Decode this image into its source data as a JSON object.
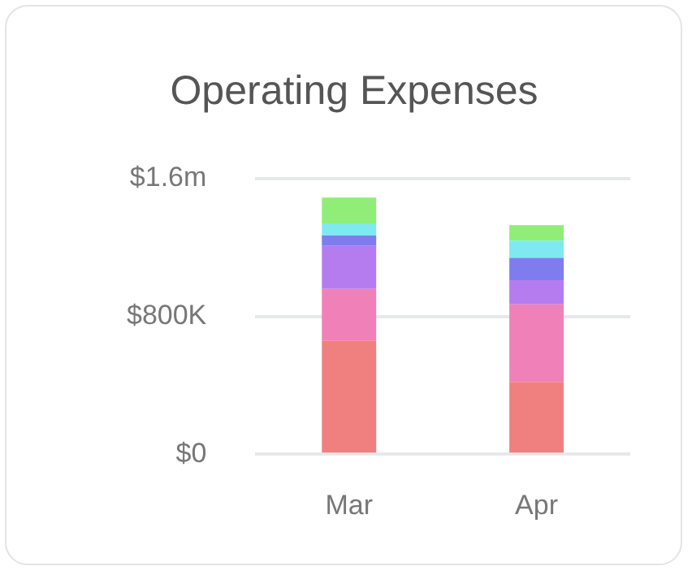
{
  "chart_data": {
    "type": "bar",
    "title": "Operating Expenses",
    "categories": [
      "Mar",
      "Apr"
    ],
    "stacked": true,
    "series": [
      {
        "color": "#f08080",
        "values": [
          660000,
          420000
        ]
      },
      {
        "color": "#f080b8",
        "values": [
          300000,
          450000
        ]
      },
      {
        "color": "#b57cf0",
        "values": [
          250000,
          140000
        ]
      },
      {
        "color": "#7f7cf0",
        "values": [
          60000,
          130000
        ]
      },
      {
        "color": "#7eeaf0",
        "values": [
          70000,
          100000
        ]
      },
      {
        "color": "#90ee78",
        "values": [
          150000,
          90000
        ]
      }
    ],
    "ylim": [
      0,
      1600000
    ],
    "yticks": [
      {
        "value": 0,
        "label": "$0"
      },
      {
        "value": 800000,
        "label": "$800K"
      },
      {
        "value": 1600000,
        "label": "$1.6m"
      }
    ],
    "grid": "y",
    "legend": false
  }
}
